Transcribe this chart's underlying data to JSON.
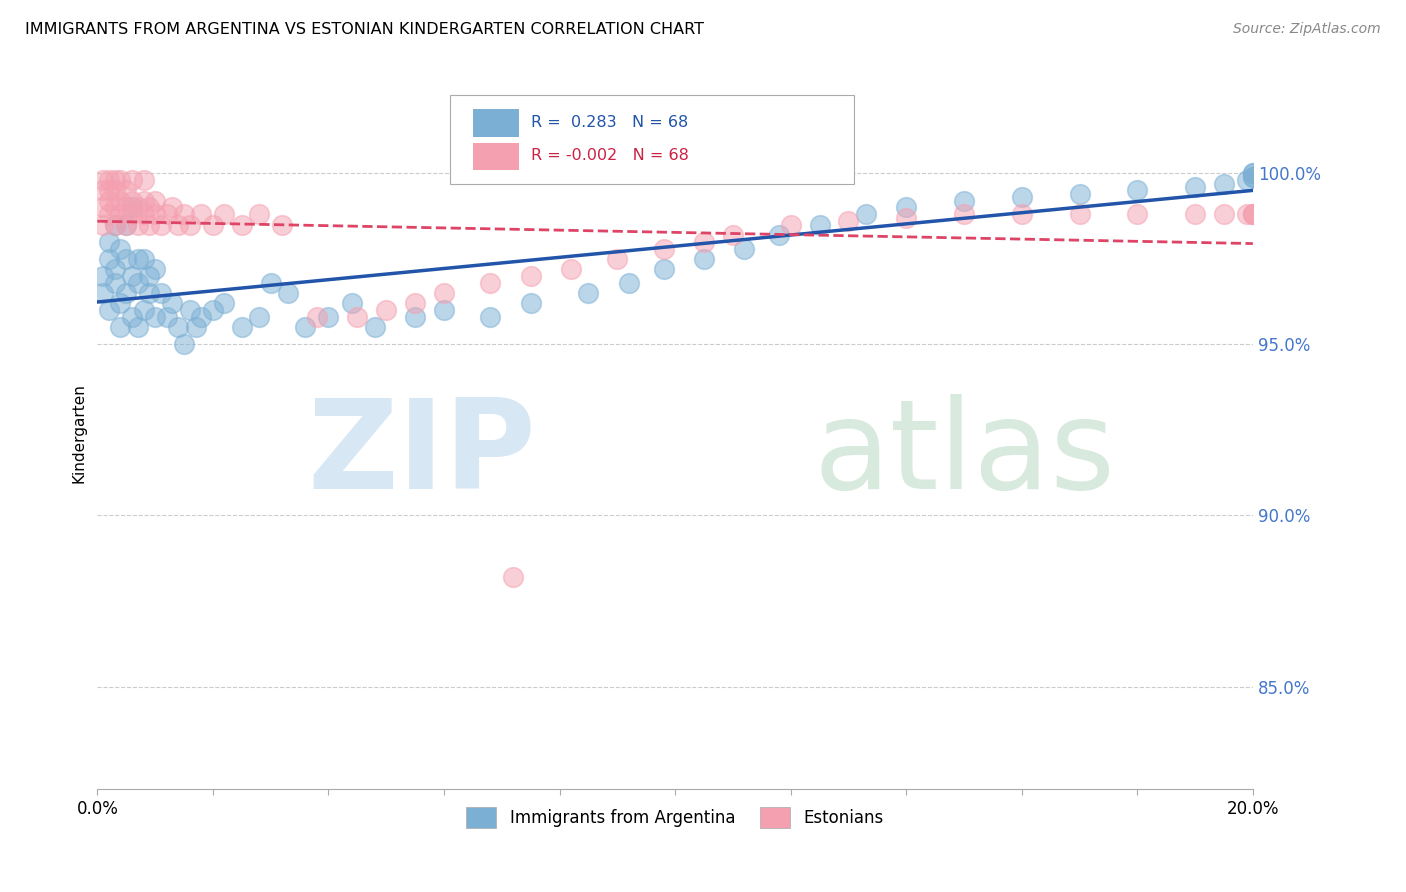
{
  "title": "IMMIGRANTS FROM ARGENTINA VS ESTONIAN KINDERGARTEN CORRELATION CHART",
  "source": "Source: ZipAtlas.com",
  "ylabel": "Kindergarten",
  "ytick_labels": [
    "85.0%",
    "90.0%",
    "95.0%",
    "100.0%"
  ],
  "ytick_values": [
    0.85,
    0.9,
    0.95,
    1.0
  ],
  "xlim": [
    0.0,
    0.2
  ],
  "ylim": [
    0.82,
    1.028
  ],
  "legend_blue_label": "Immigrants from Argentina",
  "legend_pink_label": "Estonians",
  "blue_color": "#7bafd4",
  "pink_color": "#f4a0b0",
  "trendline_blue": "#2255aa",
  "trendline_pink": "#dd4466",
  "blue_scatter_x": [
    0.001,
    0.001,
    0.002,
    0.002,
    0.002,
    0.003,
    0.003,
    0.003,
    0.004,
    0.004,
    0.004,
    0.005,
    0.005,
    0.005,
    0.006,
    0.006,
    0.006,
    0.007,
    0.007,
    0.007,
    0.008,
    0.008,
    0.009,
    0.009,
    0.01,
    0.01,
    0.011,
    0.012,
    0.013,
    0.014,
    0.015,
    0.016,
    0.017,
    0.018,
    0.02,
    0.022,
    0.025,
    0.028,
    0.03,
    0.033,
    0.036,
    0.04,
    0.044,
    0.048,
    0.055,
    0.06,
    0.068,
    0.075,
    0.085,
    0.092,
    0.098,
    0.105,
    0.112,
    0.118,
    0.125,
    0.133,
    0.14,
    0.15,
    0.16,
    0.17,
    0.18,
    0.19,
    0.195,
    0.199,
    0.2,
    0.2,
    0.2,
    0.2
  ],
  "blue_scatter_y": [
    0.97,
    0.965,
    0.975,
    0.98,
    0.96,
    0.972,
    0.968,
    0.985,
    0.978,
    0.962,
    0.955,
    0.975,
    0.965,
    0.985,
    0.97,
    0.958,
    0.99,
    0.968,
    0.955,
    0.975,
    0.96,
    0.975,
    0.965,
    0.97,
    0.958,
    0.972,
    0.965,
    0.958,
    0.962,
    0.955,
    0.95,
    0.96,
    0.955,
    0.958,
    0.96,
    0.962,
    0.955,
    0.958,
    0.968,
    0.965,
    0.955,
    0.958,
    0.962,
    0.955,
    0.958,
    0.96,
    0.958,
    0.962,
    0.965,
    0.968,
    0.972,
    0.975,
    0.978,
    0.982,
    0.985,
    0.988,
    0.99,
    0.992,
    0.993,
    0.994,
    0.995,
    0.996,
    0.997,
    0.998,
    0.999,
    0.999,
    1.0,
    1.0
  ],
  "pink_scatter_x": [
    0.001,
    0.001,
    0.001,
    0.001,
    0.002,
    0.002,
    0.002,
    0.002,
    0.003,
    0.003,
    0.003,
    0.003,
    0.004,
    0.004,
    0.004,
    0.005,
    0.005,
    0.005,
    0.006,
    0.006,
    0.006,
    0.007,
    0.007,
    0.008,
    0.008,
    0.008,
    0.009,
    0.009,
    0.01,
    0.01,
    0.011,
    0.012,
    0.013,
    0.014,
    0.015,
    0.016,
    0.018,
    0.02,
    0.022,
    0.025,
    0.028,
    0.032,
    0.038,
    0.045,
    0.05,
    0.055,
    0.06,
    0.068,
    0.075,
    0.082,
    0.09,
    0.098,
    0.105,
    0.11,
    0.12,
    0.13,
    0.14,
    0.15,
    0.16,
    0.17,
    0.18,
    0.19,
    0.195,
    0.199,
    0.2,
    0.2,
    0.2,
    0.072
  ],
  "pink_scatter_y": [
    0.99,
    0.985,
    0.998,
    0.995,
    0.992,
    0.988,
    0.995,
    0.998,
    0.99,
    0.985,
    0.998,
    0.995,
    0.988,
    0.992,
    0.998,
    0.985,
    0.99,
    0.995,
    0.988,
    0.992,
    0.998,
    0.985,
    0.99,
    0.988,
    0.992,
    0.998,
    0.985,
    0.99,
    0.988,
    0.992,
    0.985,
    0.988,
    0.99,
    0.985,
    0.988,
    0.985,
    0.988,
    0.985,
    0.988,
    0.985,
    0.988,
    0.985,
    0.958,
    0.958,
    0.96,
    0.962,
    0.965,
    0.968,
    0.97,
    0.972,
    0.975,
    0.978,
    0.98,
    0.982,
    0.985,
    0.986,
    0.987,
    0.988,
    0.988,
    0.988,
    0.988,
    0.988,
    0.988,
    0.988,
    0.988,
    0.988,
    0.988,
    0.882
  ]
}
